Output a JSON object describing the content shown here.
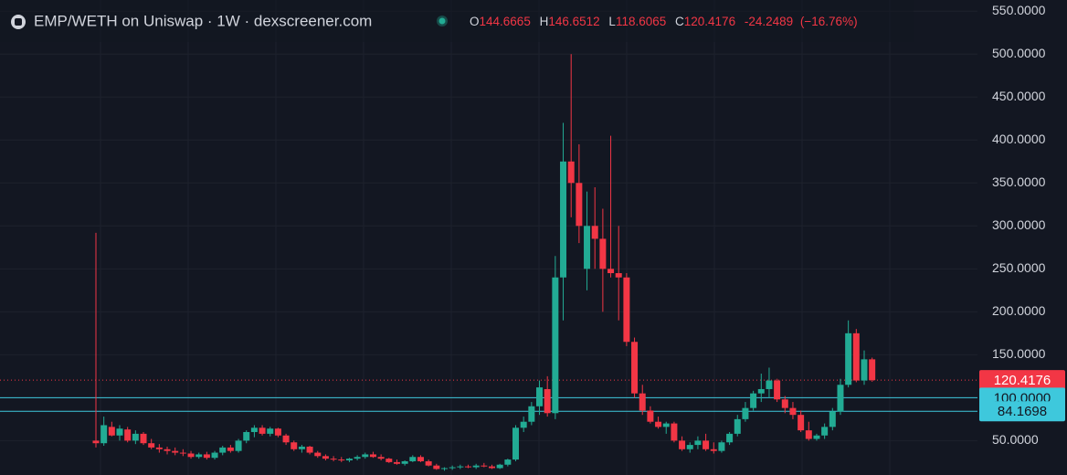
{
  "chart_data": {
    "type": "candlestick",
    "title": "EMP/WETH on Uniswap · 1W · dexscreener.com",
    "ohlc_header": [
      {
        "label": "O",
        "value": "144.6665"
      },
      {
        "label": "H",
        "value": "146.6512"
      },
      {
        "label": "L",
        "value": "118.6065"
      },
      {
        "label": "C",
        "value": "120.4176"
      }
    ],
    "change": "-24.2489",
    "change_pct": "(−16.76%)",
    "up_color": "#22ab94",
    "down_color": "#f23645",
    "grid": true,
    "ylim": [
      10,
      563
    ],
    "yticks": [
      {
        "value": 50,
        "label": "50.0000"
      },
      {
        "value": 100,
        "label": "100.0000"
      },
      {
        "value": 150,
        "label": "150.0000"
      },
      {
        "value": 200,
        "label": "200.0000"
      },
      {
        "value": 250,
        "label": "250.0000"
      },
      {
        "value": 300,
        "label": "300.0000"
      },
      {
        "value": 350,
        "label": "350.0000"
      },
      {
        "value": 400,
        "label": "400.0000"
      },
      {
        "value": 450,
        "label": "450.0000"
      },
      {
        "value": 500,
        "label": "500.0000"
      },
      {
        "value": 550,
        "label": "550.0000"
      }
    ],
    "price_lines": [
      {
        "value": 120.4176,
        "label": "120.4176",
        "color": "#f23645"
      },
      {
        "value": 100,
        "label": "100.0000",
        "color": "#3ec8dc"
      },
      {
        "value": 84.1698,
        "label": "84.1698",
        "color": "#3ec8dc"
      }
    ],
    "open": [
      50,
      47,
      66,
      56,
      63,
      50,
      58,
      47,
      42,
      40,
      38,
      36,
      35,
      31,
      34,
      30,
      36,
      42,
      38,
      50,
      60,
      65,
      58,
      64,
      56,
      48,
      40,
      43,
      36,
      32,
      29,
      28,
      27,
      29,
      31,
      34,
      31,
      29,
      25,
      23,
      26,
      31,
      26,
      21,
      17,
      18,
      19,
      20,
      19,
      21,
      20,
      18,
      22,
      28,
      65,
      72,
      90,
      110,
      82,
      240,
      375,
      350,
      250,
      300,
      285,
      250,
      245,
      240,
      165,
      105,
      85,
      72,
      66,
      70,
      50,
      40,
      45,
      50,
      40,
      38,
      48,
      58,
      75,
      88,
      105,
      110,
      120,
      98,
      88,
      80,
      62,
      52,
      56,
      66,
      84,
      115,
      175,
      120,
      144.6665
    ],
    "high": [
      292,
      78,
      72,
      68,
      66,
      62,
      60,
      52,
      46,
      43,
      42,
      40,
      38,
      36,
      37,
      38,
      44,
      45,
      52,
      62,
      68,
      68,
      66,
      65,
      58,
      50,
      45,
      44,
      38,
      34,
      32,
      31,
      30,
      33,
      36,
      37,
      34,
      30,
      28,
      27,
      33,
      33,
      28,
      23,
      19,
      21,
      22,
      22,
      23,
      24,
      22,
      23,
      29,
      68,
      78,
      95,
      120,
      125,
      265,
      420,
      500,
      395,
      340,
      345,
      320,
      405,
      300,
      245,
      170,
      115,
      90,
      78,
      72,
      72,
      55,
      48,
      55,
      58,
      48,
      50,
      60,
      80,
      95,
      108,
      128,
      135,
      122,
      102,
      95,
      85,
      72,
      58,
      70,
      88,
      122,
      190,
      180,
      155,
      146.6512
    ],
    "low": [
      42,
      44,
      55,
      50,
      48,
      46,
      45,
      40,
      36,
      34,
      33,
      32,
      29,
      29,
      28,
      28,
      33,
      36,
      36,
      47,
      54,
      56,
      55,
      54,
      45,
      38,
      36,
      34,
      30,
      27,
      26,
      25,
      25,
      27,
      29,
      30,
      27,
      24,
      22,
      21,
      25,
      25,
      20,
      16,
      15,
      16,
      17,
      18,
      17,
      19,
      17,
      17,
      20,
      26,
      60,
      68,
      80,
      78,
      75,
      190,
      310,
      280,
      225,
      250,
      200,
      240,
      190,
      160,
      100,
      80,
      70,
      64,
      58,
      48,
      38,
      36,
      40,
      38,
      35,
      36,
      45,
      55,
      72,
      85,
      95,
      100,
      95,
      82,
      75,
      60,
      50,
      50,
      52,
      62,
      80,
      112,
      118,
      115,
      118.6065
    ],
    "close": [
      47,
      68,
      56,
      64,
      50,
      58,
      47,
      42,
      40,
      38,
      36,
      35,
      31,
      34,
      30,
      36,
      42,
      38,
      50,
      60,
      65,
      58,
      64,
      56,
      48,
      40,
      43,
      36,
      32,
      29,
      28,
      27,
      29,
      31,
      34,
      31,
      29,
      25,
      23,
      26,
      31,
      26,
      21,
      17,
      18,
      19,
      20,
      19,
      21,
      20,
      18,
      22,
      28,
      65,
      72,
      90,
      112,
      82,
      240,
      375,
      350,
      300,
      300,
      285,
      250,
      245,
      240,
      165,
      105,
      85,
      72,
      66,
      70,
      50,
      40,
      45,
      50,
      40,
      38,
      48,
      58,
      75,
      88,
      105,
      110,
      120,
      98,
      88,
      80,
      62,
      52,
      56,
      66,
      84,
      115,
      175,
      120,
      144.6665,
      120.4176
    ]
  }
}
